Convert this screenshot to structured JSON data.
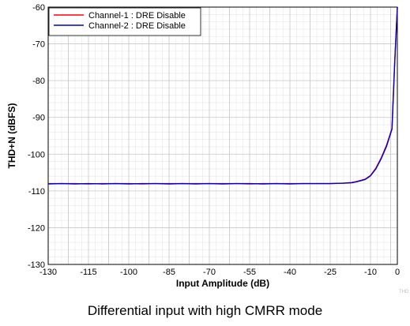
{
  "chart_data": {
    "type": "line",
    "xlabel": "Input Amplitude (dB)",
    "ylabel": "THD+N (dBFS)",
    "xlim": [
      -130,
      0
    ],
    "ylim": [
      -130,
      -60
    ],
    "xticks": [
      -130,
      -115,
      -100,
      -85,
      -70,
      -55,
      -40,
      -25,
      -10,
      0
    ],
    "yticks": [
      -60,
      -70,
      -80,
      -90,
      -100,
      -110,
      -120,
      -130
    ],
    "grid": true,
    "legend_position": "top-left",
    "series": [
      {
        "name": "Channel-1 : DRE Disable",
        "color": "#ff0000",
        "x": [
          -130,
          -125,
          -120,
          -115,
          -110,
          -105,
          -100,
          -95,
          -90,
          -85,
          -80,
          -75,
          -70,
          -65,
          -60,
          -55,
          -50,
          -45,
          -40,
          -35,
          -30,
          -25,
          -20,
          -17,
          -15,
          -12,
          -10,
          -8,
          -6,
          -4,
          -2,
          -1,
          0
        ],
        "y": [
          -108.0,
          -108.0,
          -108.0,
          -108.1,
          -108.0,
          -108.0,
          -108.0,
          -108.1,
          -108.0,
          -108.0,
          -108.0,
          -108.0,
          -108.0,
          -108.0,
          -108.0,
          -108.1,
          -108.0,
          -108.0,
          -108.0,
          -108.0,
          -108.0,
          -108.0,
          -107.9,
          -107.7,
          -107.4,
          -106.8,
          -105.8,
          -103.8,
          -101.0,
          -97.5,
          -93.0,
          -75.0,
          -60.0
        ]
      },
      {
        "name": "Channel-2 : DRE Disable",
        "color": "#0000cc",
        "x": [
          -130,
          -125,
          -120,
          -115,
          -110,
          -105,
          -100,
          -95,
          -90,
          -85,
          -80,
          -75,
          -70,
          -65,
          -60,
          -55,
          -50,
          -45,
          -40,
          -35,
          -30,
          -25,
          -20,
          -17,
          -15,
          -12,
          -10,
          -8,
          -6,
          -4,
          -2,
          -1,
          0
        ],
        "y": [
          -108.1,
          -108.0,
          -108.1,
          -108.0,
          -108.1,
          -108.0,
          -108.1,
          -108.0,
          -108.0,
          -108.1,
          -108.0,
          -108.1,
          -108.0,
          -108.1,
          -108.0,
          -108.0,
          -108.1,
          -108.0,
          -108.1,
          -108.0,
          -108.0,
          -108.0,
          -107.9,
          -107.8,
          -107.5,
          -106.9,
          -105.9,
          -104.0,
          -101.2,
          -97.8,
          -93.2,
          -75.5,
          -60.0
        ]
      }
    ],
    "watermark": "THD"
  },
  "caption": "Differential input with high CMRR mode"
}
